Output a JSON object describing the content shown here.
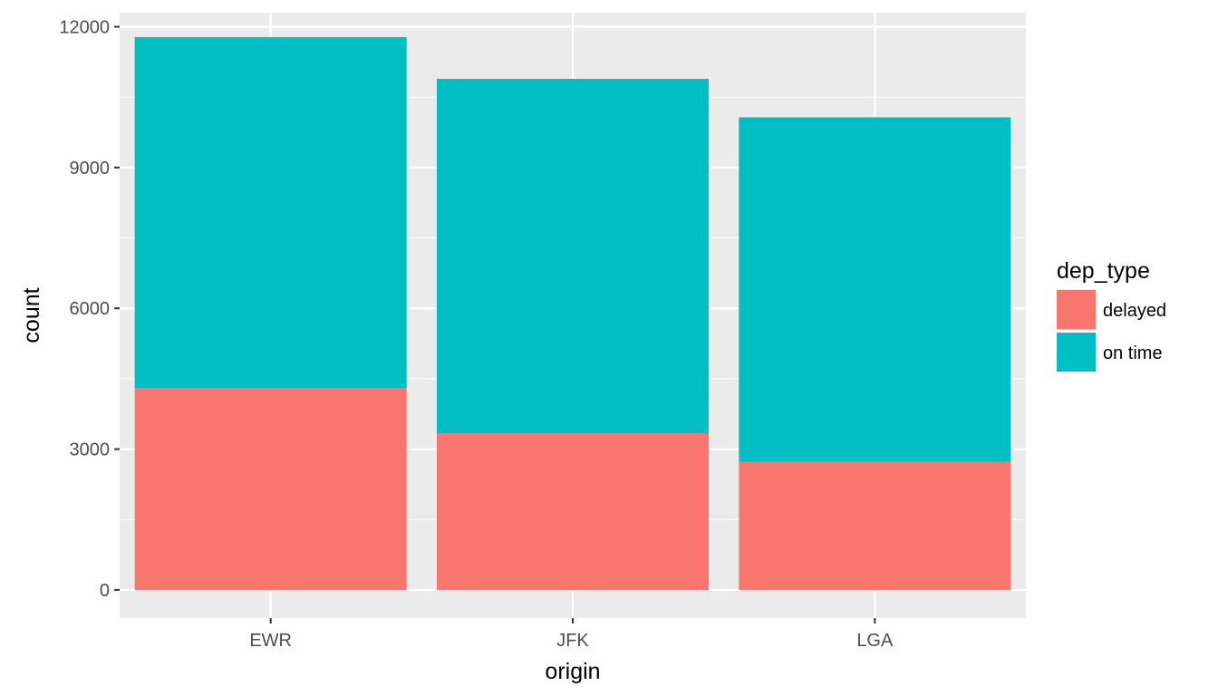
{
  "chart_data": {
    "type": "bar",
    "stacked": true,
    "categories": [
      "EWR",
      "JFK",
      "LGA"
    ],
    "series": [
      {
        "name": "delayed",
        "color": "#F8766D",
        "values": [
          4300,
          3340,
          2730
        ]
      },
      {
        "name": "on time",
        "color": "#00BFC4",
        "values": [
          7480,
          7550,
          7340
        ]
      }
    ],
    "title": "",
    "xlabel": "origin",
    "ylabel": "count",
    "ylim": [
      -600,
      12300
    ],
    "yticks": [
      0,
      3000,
      6000,
      9000,
      12000
    ],
    "ytick_labels": [
      "0",
      "3000",
      "6000",
      "9000",
      "12000"
    ],
    "grid": true,
    "panel_background": "#EBEBEB",
    "grid_color": "#FFFFFF",
    "legend": {
      "title": "dep_type",
      "position": "right"
    }
  }
}
